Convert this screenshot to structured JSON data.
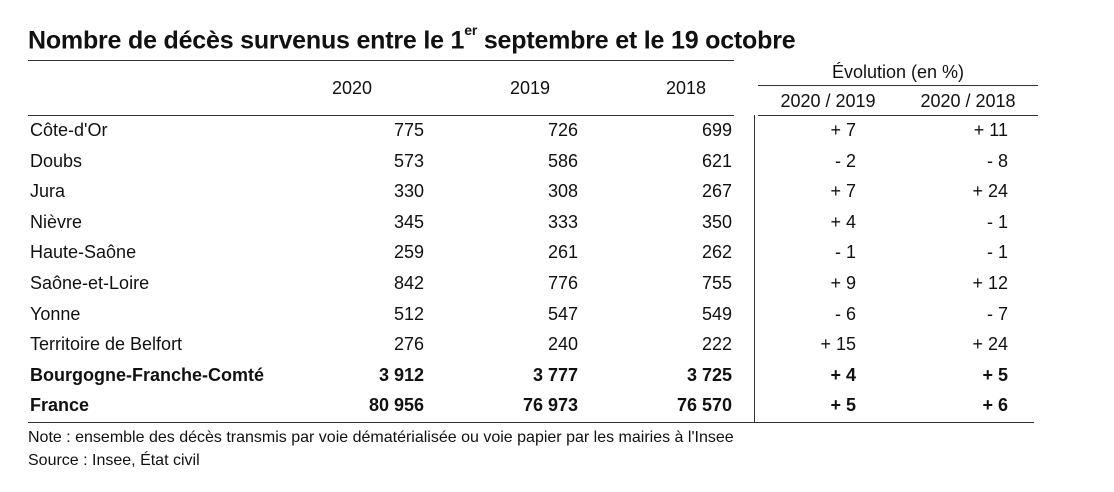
{
  "title": {
    "prefix": "Nombre de décès survenus entre le 1",
    "superscript": "er",
    "suffix": " septembre et le 19 octobre"
  },
  "header": {
    "years": [
      "2020",
      "2019",
      "2018"
    ],
    "evolution_label": "Évolution (en %)",
    "evolution_cols": [
      "2020 / 2019",
      "2020 / 2018"
    ]
  },
  "rows": [
    {
      "name": "Côte-d'Or",
      "y2020": "775",
      "y2019": "726",
      "y2018": "699",
      "e1": "+ 7",
      "e2": "+ 11",
      "bold": false
    },
    {
      "name": "Doubs",
      "y2020": "573",
      "y2019": "586",
      "y2018": "621",
      "e1": "- 2",
      "e2": "- 8",
      "bold": false
    },
    {
      "name": "Jura",
      "y2020": "330",
      "y2019": "308",
      "y2018": "267",
      "e1": "+ 7",
      "e2": "+ 24",
      "bold": false
    },
    {
      "name": "Nièvre",
      "y2020": "345",
      "y2019": "333",
      "y2018": "350",
      "e1": "+ 4",
      "e2": "- 1",
      "bold": false
    },
    {
      "name": "Haute-Saône",
      "y2020": "259",
      "y2019": "261",
      "y2018": "262",
      "e1": "- 1",
      "e2": "- 1",
      "bold": false
    },
    {
      "name": "Saône-et-Loire",
      "y2020": "842",
      "y2019": "776",
      "y2018": "755",
      "e1": "+ 9",
      "e2": "+ 12",
      "bold": false
    },
    {
      "name": "Yonne",
      "y2020": "512",
      "y2019": "547",
      "y2018": "549",
      "e1": "- 6",
      "e2": "- 7",
      "bold": false
    },
    {
      "name": "Territoire de Belfort",
      "y2020": "276",
      "y2019": "240",
      "y2018": "222",
      "e1": "+ 15",
      "e2": "+ 24",
      "bold": false
    },
    {
      "name": "Bourgogne-Franche-Comté",
      "y2020": "3 912",
      "y2019": "3 777",
      "y2018": "3 725",
      "e1": "+ 4",
      "e2": "+ 5",
      "bold": true
    },
    {
      "name": "France",
      "y2020": "80 956",
      "y2019": "76 973",
      "y2018": "76 570",
      "e1": "+ 5",
      "e2": "+ 6",
      "bold": true
    }
  ],
  "notes": {
    "note": "Note : ensemble des décès transmis par voie dématérialisée ou voie papier par les mairies à l'Insee",
    "source": "Source : Insee, État civil"
  }
}
